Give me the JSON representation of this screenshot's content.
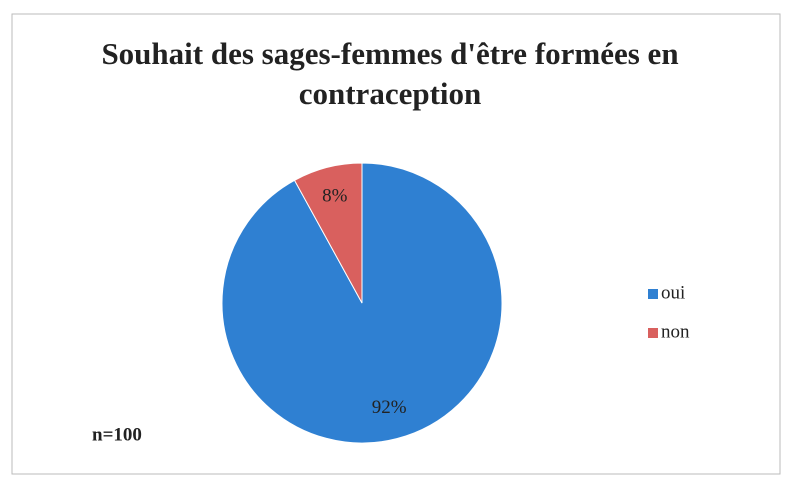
{
  "chart_data": {
    "type": "pie",
    "title": "Souhait des sages-femmes d'être formées en contraception",
    "categories": [
      "oui",
      "non"
    ],
    "values": [
      92,
      8
    ],
    "value_labels": [
      "92%",
      "8%"
    ],
    "colors": [
      "#2f80d2",
      "#d9605e"
    ],
    "annotation": "n=100",
    "legend": "right"
  }
}
